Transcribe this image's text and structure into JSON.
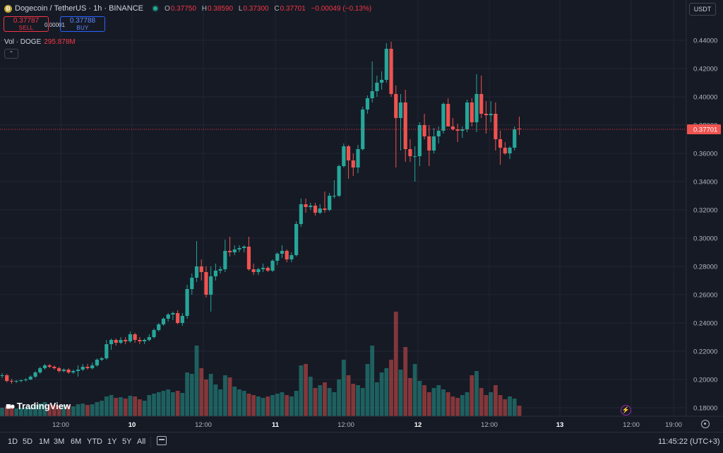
{
  "header": {
    "title": "Dogecoin / TetherUS · 1h · BINANCE",
    "ohlc": [
      {
        "key": "O",
        "value": "0.37750"
      },
      {
        "key": "H",
        "value": "0.38590"
      },
      {
        "key": "L",
        "value": "0.37300"
      },
      {
        "key": "C",
        "value": "0.37701"
      },
      {
        "key": "",
        "value": "−0.00049 (−0.13%)"
      }
    ],
    "sell_price": "0.37787",
    "sell_label": "SELL",
    "spread": "0.00001",
    "buy_price": "0.37788",
    "buy_label": "BUY",
    "vol_label": "Vol · DOGE",
    "vol_value": "295.878M",
    "currency": "USDT"
  },
  "colors": {
    "background": "#161a25",
    "up": "#22ab94",
    "down": "#f23645",
    "up_candle": "#26a69a",
    "down_candle": "#ef5350",
    "grid": "#232632",
    "price_line": "#f23645"
  },
  "chart_data": {
    "type": "candlestick",
    "y_axis_ticks": [
      "0.44000",
      "0.42000",
      "0.40000",
      "0.38000",
      "0.36000",
      "0.34000",
      "0.32000",
      "0.30000",
      "0.28000",
      "0.26000",
      "0.24000",
      "0.22000",
      "0.20000",
      "0.18000"
    ],
    "ylim": [
      0.173,
      0.451
    ],
    "x_axis_ticks": [
      "12:00",
      "10",
      "12:00",
      "11",
      "12:00",
      "12",
      "12:00",
      "13",
      "12:00",
      "19:00"
    ],
    "x_axis_bold": [
      "10",
      "11",
      "12",
      "13"
    ],
    "last_price": 0.37701,
    "last_price_label": "0.37701",
    "candles": [
      [
        0.2025,
        0.2045,
        0.201,
        0.203
      ],
      [
        0.203,
        0.204,
        0.198,
        0.199
      ],
      [
        0.199,
        0.2005,
        0.197,
        0.1985
      ],
      [
        0.1985,
        0.1995,
        0.1975,
        0.199
      ],
      [
        0.199,
        0.2,
        0.198,
        0.1995
      ],
      [
        0.1995,
        0.201,
        0.1985,
        0.2
      ],
      [
        0.2,
        0.203,
        0.1995,
        0.202
      ],
      [
        0.202,
        0.206,
        0.201,
        0.205
      ],
      [
        0.205,
        0.209,
        0.204,
        0.208
      ],
      [
        0.208,
        0.211,
        0.207,
        0.21
      ],
      [
        0.21,
        0.211,
        0.208,
        0.209
      ],
      [
        0.209,
        0.21,
        0.207,
        0.208
      ],
      [
        0.208,
        0.209,
        0.205,
        0.206
      ],
      [
        0.206,
        0.208,
        0.205,
        0.207
      ],
      [
        0.207,
        0.208,
        0.204,
        0.205
      ],
      [
        0.205,
        0.207,
        0.204,
        0.206
      ],
      [
        0.206,
        0.21,
        0.202,
        0.207
      ],
      [
        0.207,
        0.211,
        0.206,
        0.209
      ],
      [
        0.209,
        0.211,
        0.207,
        0.208
      ],
      [
        0.208,
        0.212,
        0.207,
        0.21
      ],
      [
        0.21,
        0.215,
        0.209,
        0.214
      ],
      [
        0.214,
        0.216,
        0.213,
        0.215
      ],
      [
        0.215,
        0.228,
        0.214,
        0.225
      ],
      [
        0.225,
        0.229,
        0.221,
        0.228
      ],
      [
        0.228,
        0.229,
        0.224,
        0.226
      ],
      [
        0.226,
        0.23,
        0.225,
        0.228
      ],
      [
        0.228,
        0.23,
        0.225,
        0.227
      ],
      [
        0.227,
        0.234,
        0.226,
        0.232
      ],
      [
        0.232,
        0.233,
        0.226,
        0.228
      ],
      [
        0.228,
        0.23,
        0.225,
        0.227
      ],
      [
        0.227,
        0.229,
        0.225,
        0.228
      ],
      [
        0.228,
        0.232,
        0.227,
        0.23
      ],
      [
        0.23,
        0.236,
        0.229,
        0.235
      ],
      [
        0.235,
        0.24,
        0.234,
        0.239
      ],
      [
        0.239,
        0.244,
        0.238,
        0.243
      ],
      [
        0.243,
        0.247,
        0.241,
        0.246
      ],
      [
        0.246,
        0.248,
        0.242,
        0.247
      ],
      [
        0.247,
        0.249,
        0.239,
        0.24
      ],
      [
        0.24,
        0.247,
        0.238,
        0.245
      ],
      [
        0.245,
        0.267,
        0.243,
        0.264
      ],
      [
        0.264,
        0.275,
        0.26,
        0.272
      ],
      [
        0.272,
        0.298,
        0.269,
        0.28
      ],
      [
        0.28,
        0.285,
        0.27,
        0.276
      ],
      [
        0.276,
        0.28,
        0.258,
        0.26
      ],
      [
        0.26,
        0.28,
        0.248,
        0.273
      ],
      [
        0.273,
        0.282,
        0.27,
        0.277
      ],
      [
        0.277,
        0.28,
        0.275,
        0.278
      ],
      [
        0.278,
        0.299,
        0.276,
        0.291
      ],
      [
        0.291,
        0.301,
        0.287,
        0.29
      ],
      [
        0.29,
        0.295,
        0.288,
        0.292
      ],
      [
        0.292,
        0.295,
        0.29,
        0.293
      ],
      [
        0.293,
        0.295,
        0.29,
        0.294
      ],
      [
        0.294,
        0.301,
        0.277,
        0.278
      ],
      [
        0.278,
        0.282,
        0.274,
        0.276
      ],
      [
        0.276,
        0.279,
        0.274,
        0.278
      ],
      [
        0.278,
        0.282,
        0.276,
        0.279
      ],
      [
        0.279,
        0.28,
        0.276,
        0.277
      ],
      [
        0.277,
        0.285,
        0.276,
        0.284
      ],
      [
        0.284,
        0.29,
        0.281,
        0.289
      ],
      [
        0.289,
        0.295,
        0.286,
        0.291
      ],
      [
        0.291,
        0.292,
        0.283,
        0.285
      ],
      [
        0.285,
        0.29,
        0.283,
        0.288
      ],
      [
        0.288,
        0.312,
        0.287,
        0.31
      ],
      [
        0.31,
        0.328,
        0.308,
        0.324
      ],
      [
        0.324,
        0.328,
        0.318,
        0.322
      ],
      [
        0.322,
        0.325,
        0.32,
        0.323
      ],
      [
        0.323,
        0.325,
        0.316,
        0.318
      ],
      [
        0.318,
        0.324,
        0.317,
        0.321
      ],
      [
        0.321,
        0.333,
        0.318,
        0.32
      ],
      [
        0.32,
        0.332,
        0.319,
        0.33
      ],
      [
        0.33,
        0.341,
        0.328,
        0.33
      ],
      [
        0.33,
        0.352,
        0.329,
        0.351
      ],
      [
        0.351,
        0.367,
        0.35,
        0.365
      ],
      [
        0.365,
        0.366,
        0.342,
        0.355
      ],
      [
        0.355,
        0.36,
        0.344,
        0.35
      ],
      [
        0.35,
        0.366,
        0.346,
        0.363
      ],
      [
        0.363,
        0.393,
        0.362,
        0.391
      ],
      [
        0.391,
        0.401,
        0.388,
        0.399
      ],
      [
        0.399,
        0.425,
        0.396,
        0.404
      ],
      [
        0.404,
        0.415,
        0.4,
        0.41
      ],
      [
        0.41,
        0.418,
        0.405,
        0.412
      ],
      [
        0.412,
        0.438,
        0.41,
        0.434
      ],
      [
        0.434,
        0.439,
        0.4,
        0.402
      ],
      [
        0.402,
        0.408,
        0.35,
        0.385
      ],
      [
        0.385,
        0.402,
        0.362,
        0.396
      ],
      [
        0.396,
        0.405,
        0.354,
        0.363
      ],
      [
        0.363,
        0.37,
        0.354,
        0.358
      ],
      [
        0.358,
        0.365,
        0.34,
        0.358
      ],
      [
        0.358,
        0.382,
        0.351,
        0.38
      ],
      [
        0.38,
        0.388,
        0.37,
        0.372
      ],
      [
        0.372,
        0.38,
        0.351,
        0.362
      ],
      [
        0.362,
        0.378,
        0.36,
        0.372
      ],
      [
        0.372,
        0.379,
        0.367,
        0.376
      ],
      [
        0.376,
        0.396,
        0.374,
        0.395
      ],
      [
        0.395,
        0.399,
        0.381,
        0.379
      ],
      [
        0.379,
        0.385,
        0.376,
        0.377
      ],
      [
        0.377,
        0.381,
        0.368,
        0.376
      ],
      [
        0.376,
        0.379,
        0.371,
        0.377
      ],
      [
        0.377,
        0.398,
        0.375,
        0.396
      ],
      [
        0.396,
        0.399,
        0.379,
        0.382
      ],
      [
        0.382,
        0.416,
        0.375,
        0.402
      ],
      [
        0.402,
        0.415,
        0.385,
        0.388
      ],
      [
        0.388,
        0.397,
        0.374,
        0.387
      ],
      [
        0.387,
        0.397,
        0.382,
        0.388
      ],
      [
        0.388,
        0.396,
        0.362,
        0.37
      ],
      [
        0.37,
        0.376,
        0.352,
        0.364
      ],
      [
        0.364,
        0.368,
        0.359,
        0.36
      ],
      [
        0.36,
        0.365,
        0.356,
        0.364
      ],
      [
        0.364,
        0.379,
        0.362,
        0.377
      ],
      [
        0.3775,
        0.3859,
        0.373,
        0.377
      ]
    ],
    "volumes": [
      12,
      14,
      12,
      11,
      12,
      13,
      13,
      16,
      18,
      20,
      17,
      16,
      15,
      16,
      15,
      14,
      17,
      18,
      16,
      17,
      20,
      22,
      28,
      30,
      26,
      27,
      25,
      29,
      28,
      24,
      22,
      30,
      32,
      34,
      36,
      38,
      34,
      36,
      33,
      62,
      60,
      100,
      68,
      52,
      60,
      45,
      38,
      58,
      55,
      42,
      38,
      36,
      32,
      30,
      28,
      26,
      28,
      30,
      32,
      34,
      30,
      28,
      36,
      72,
      74,
      56,
      40,
      44,
      48,
      40,
      34,
      52,
      80,
      58,
      46,
      44,
      40,
      74,
      100,
      48,
      62,
      68,
      80,
      148,
      66,
      98,
      54,
      74,
      50,
      44,
      34,
      40,
      44,
      38,
      34,
      28,
      26,
      30,
      34,
      58,
      64,
      40,
      30,
      34,
      44,
      30,
      24,
      28,
      25,
      15
    ]
  },
  "footer": {
    "logo_text": "TradingView",
    "ranges": [
      "1D",
      "5D",
      "1M",
      "3M",
      "6M",
      "YTD",
      "1Y",
      "5Y",
      "All"
    ],
    "clock": "11:45:22 (UTC+3)"
  }
}
